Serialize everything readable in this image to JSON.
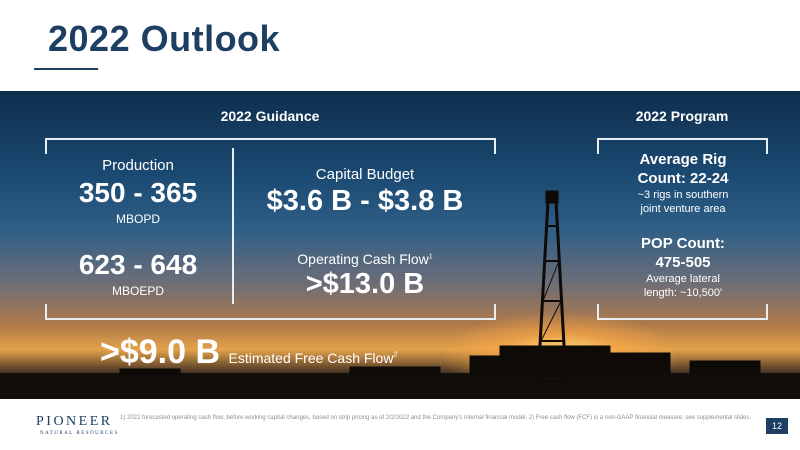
{
  "title": "2022 Outlook",
  "guidance": {
    "heading": "2022 Guidance",
    "production_label": "Production",
    "production_oil": "350 - 365",
    "production_oil_unit": "MBOPD",
    "production_total": "623 - 648",
    "production_total_unit": "MBOEPD",
    "capex_label": "Capital Budget",
    "capex_value": "$3.6 B - $3.8 B",
    "ocf_label": "Operating Cash Flow",
    "ocf_sup": "1",
    "ocf_value": ">$13.0 B",
    "fcf_value": ">$9.0 B",
    "fcf_label": "Estimated Free Cash Flow",
    "fcf_sup": "2"
  },
  "program": {
    "heading": "2022 Program",
    "rig_title_line1": "Average Rig",
    "rig_title_line2": "Count: 22-24",
    "rig_sub_line1": "~3 rigs in southern",
    "rig_sub_line2": "joint venture area",
    "pop_title_line1": "POP Count:",
    "pop_title_line2": "475-505",
    "pop_sub_line1": "Average lateral",
    "pop_sub_line2": "length: ~10,500'"
  },
  "footer": {
    "logo_main": "PIONEER",
    "logo_sub": "NATURAL RESOURCES",
    "footnote": "1) 2022 forecasted operating cash flow, before working capital changes, based on strip pricing as of 2/2/2022 and the Company's internal financial model. 2) Free cash flow (FCF) is a non-GAAP financial measure; see supplemental slides.",
    "page_number": "12"
  }
}
